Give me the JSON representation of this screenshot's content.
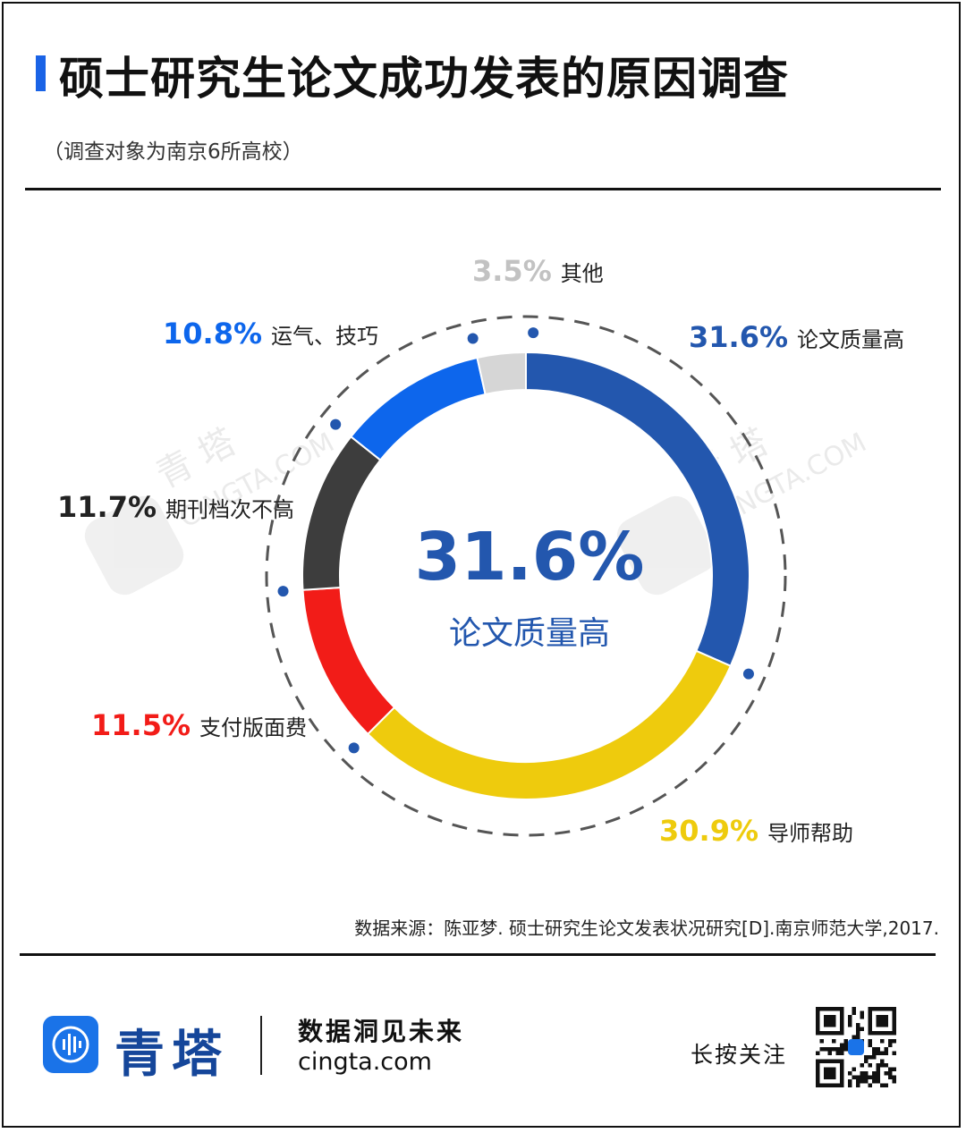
{
  "header": {
    "title": "硕士研究生论文成功发表的原因调查",
    "subtitle": "（调查对象为南京6所高校）"
  },
  "chart_data": {
    "type": "pie",
    "style": "donut",
    "series": [
      {
        "label": "论文质量高",
        "value": 31.6,
        "display": "31.6%",
        "color": "#2357ae"
      },
      {
        "label": "导师帮助",
        "value": 30.9,
        "display": "30.9%",
        "color": "#eecb0d"
      },
      {
        "label": "支付版面费",
        "value": 11.5,
        "display": "11.5%",
        "color": "#f21c18"
      },
      {
        "label": "期刊档次不高",
        "value": 11.7,
        "display": "11.7%",
        "color": "#3d3d3d"
      },
      {
        "label": "运气、技巧",
        "value": 10.8,
        "display": "10.8%",
        "color": "#0d66ec"
      },
      {
        "label": "其他",
        "value": 3.5,
        "display": "3.5%",
        "color": "#d6d6d6"
      }
    ],
    "center": {
      "value": "31.6%",
      "label": "论文质量高",
      "color": "#2357ae"
    }
  },
  "watermark": {
    "brand": "青 塔",
    "site": "CINGTA.COM"
  },
  "source": "数据来源：陈亚梦. 硕士研究生论文发表状况研究[D].南京师范大学,2017.",
  "footer": {
    "brand": "青塔",
    "slogan": "数据洞见未来",
    "site": "cingta.com",
    "follow": "长按关注"
  }
}
